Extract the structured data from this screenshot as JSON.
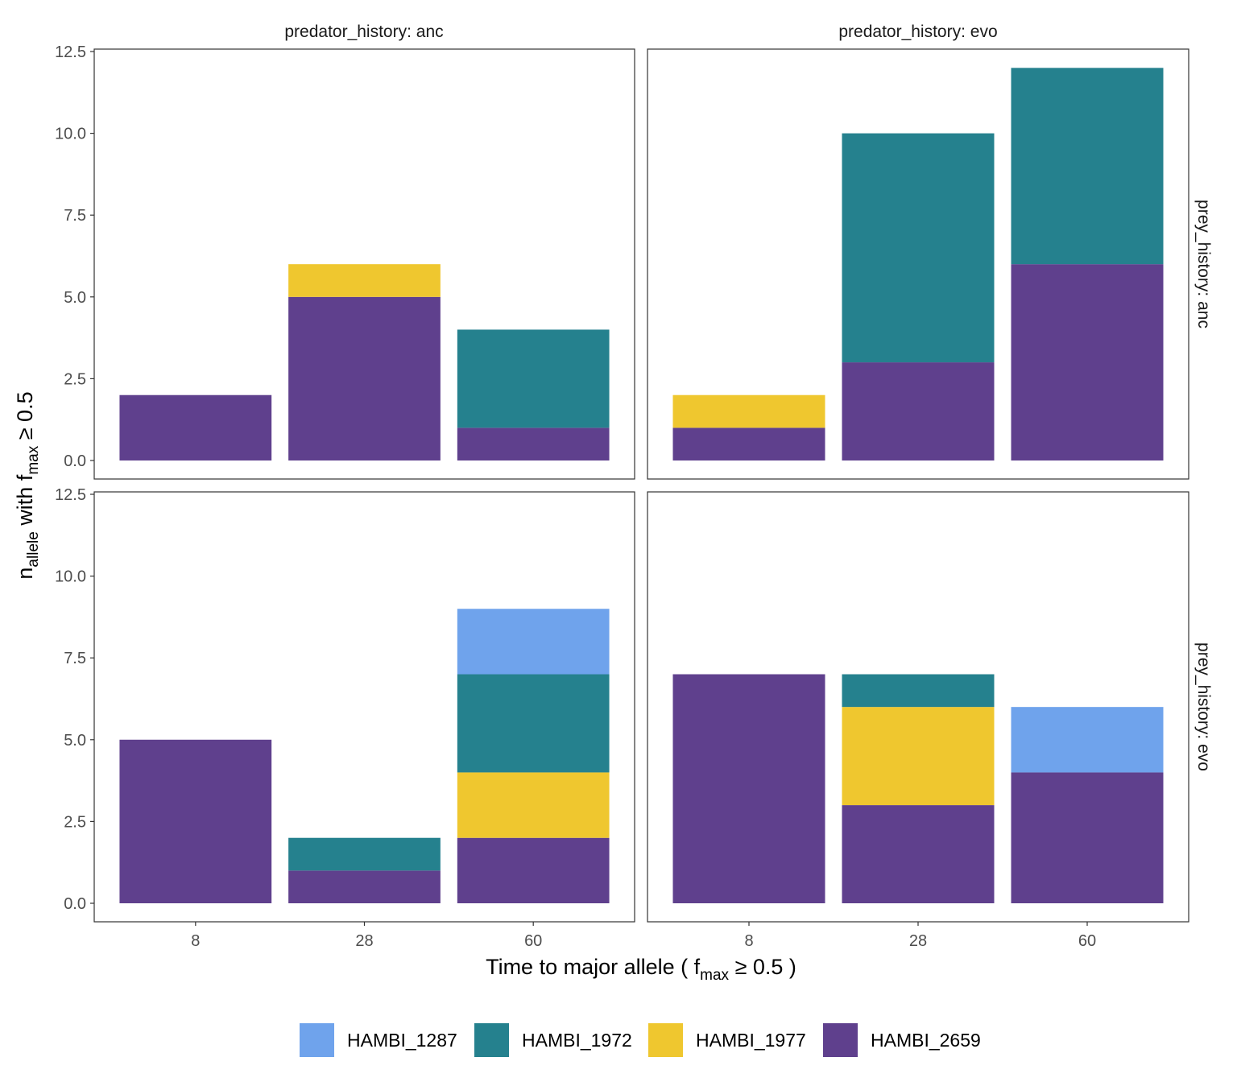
{
  "chart_data": {
    "type": "bar",
    "stacked": true,
    "facet_cols_label": "predator_history",
    "facet_rows_label": "prey_history",
    "col_strips": [
      "predator_history: anc",
      "predator_history: evo"
    ],
    "row_strips": [
      "prey_history: anc",
      "prey_history: evo"
    ],
    "categories": [
      "8",
      "28",
      "60"
    ],
    "ylim": [
      0,
      12.5
    ],
    "yticks": [
      "0.0",
      "2.5",
      "5.0",
      "7.5",
      "10.0",
      "12.5"
    ],
    "ytick_values": [
      0,
      2.5,
      5,
      7.5,
      10,
      12.5
    ],
    "xlabel": {
      "main": "Time to major allele ( f",
      "sub": "max",
      "rest": " ≥ 0.5 )"
    },
    "ylabel": {
      "main": "n",
      "sub1": "allele",
      "mid": " with f",
      "sub2": "max",
      "rest": " ≥ 0.5"
    },
    "grid": false,
    "legend_position": "bottom",
    "series_order": [
      "HAMBI_2659",
      "HAMBI_1977",
      "HAMBI_1972",
      "HAMBI_1287"
    ],
    "legend": [
      {
        "name": "HAMBI_1287",
        "color": "#6fa3ec"
      },
      {
        "name": "HAMBI_1972",
        "color": "#25818e"
      },
      {
        "name": "HAMBI_1977",
        "color": "#efc72f"
      },
      {
        "name": "HAMBI_2659",
        "color": "#5f408d"
      }
    ],
    "panels": [
      {
        "row": 0,
        "col": 0,
        "series": [
          {
            "name": "HAMBI_2659",
            "values": [
              2,
              5,
              1
            ]
          },
          {
            "name": "HAMBI_1977",
            "values": [
              0,
              1,
              0
            ]
          },
          {
            "name": "HAMBI_1972",
            "values": [
              0,
              0,
              3
            ]
          },
          {
            "name": "HAMBI_1287",
            "values": [
              0,
              0,
              0
            ]
          }
        ]
      },
      {
        "row": 0,
        "col": 1,
        "series": [
          {
            "name": "HAMBI_2659",
            "values": [
              1,
              3,
              6
            ]
          },
          {
            "name": "HAMBI_1977",
            "values": [
              1,
              0,
              0
            ]
          },
          {
            "name": "HAMBI_1972",
            "values": [
              0,
              7,
              6
            ]
          },
          {
            "name": "HAMBI_1287",
            "values": [
              0,
              0,
              0
            ]
          }
        ]
      },
      {
        "row": 1,
        "col": 0,
        "series": [
          {
            "name": "HAMBI_2659",
            "values": [
              5,
              1,
              2
            ]
          },
          {
            "name": "HAMBI_1977",
            "values": [
              0,
              0,
              2
            ]
          },
          {
            "name": "HAMBI_1972",
            "values": [
              0,
              1,
              3
            ]
          },
          {
            "name": "HAMBI_1287",
            "values": [
              0,
              0,
              2
            ]
          }
        ]
      },
      {
        "row": 1,
        "col": 1,
        "series": [
          {
            "name": "HAMBI_2659",
            "values": [
              7,
              3,
              4
            ]
          },
          {
            "name": "HAMBI_1977",
            "values": [
              0,
              3,
              0
            ]
          },
          {
            "name": "HAMBI_1972",
            "values": [
              0,
              1,
              0
            ]
          },
          {
            "name": "HAMBI_1287",
            "values": [
              0,
              0,
              2
            ]
          }
        ]
      }
    ]
  }
}
